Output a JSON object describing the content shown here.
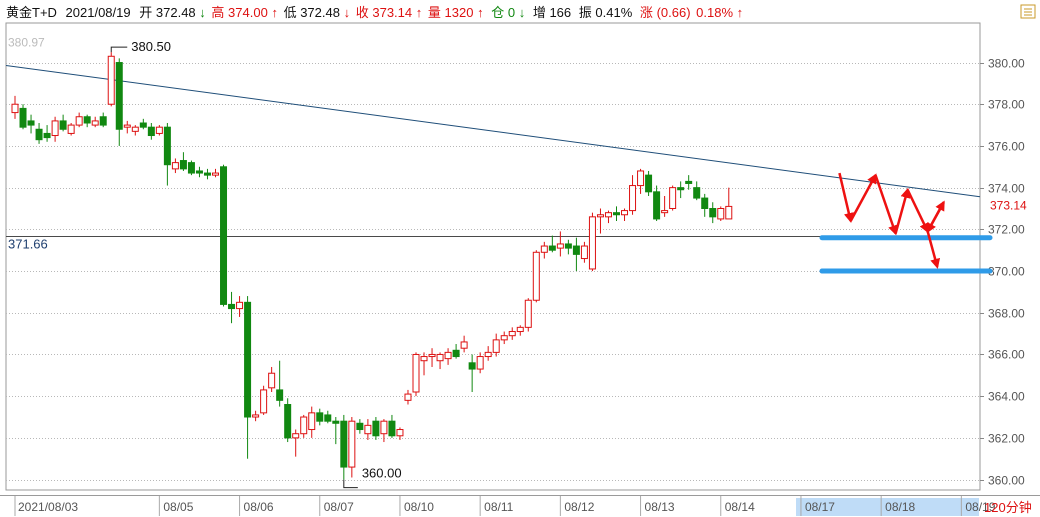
{
  "header": {
    "symbol": "黄金T+D",
    "date": "2021/08/19",
    "open_label": "开",
    "open": "372.48",
    "open_arrow": "↓",
    "high_label": "高",
    "high": "374.00",
    "high_arrow": "↑",
    "low_label": "低",
    "low": "372.48",
    "low_arrow": "↓",
    "close_label": "收",
    "close": "373.14",
    "close_arrow": "↑",
    "volume_label": "量",
    "volume": "1320",
    "volume_arrow": "↑",
    "position_label": "仓",
    "position": "0",
    "position_arrow": "↓",
    "increase_label": "增",
    "increase": "166",
    "amplitude_label": "振",
    "amplitude": "0.41%",
    "change_label": "涨",
    "change": "(0.66)",
    "change_pct": "0.18%",
    "change_arrow": "↑"
  },
  "colors": {
    "up": "#dd1111",
    "down": "#118811",
    "trendline": "#1f4e79",
    "support": "#2f9be8",
    "annotation": "#ee1111",
    "grid": "#b8b8b8",
    "ylabel": "#555555"
  },
  "chart_data": {
    "type": "candlestick",
    "title": "",
    "xlabel": "",
    "ylabel": "",
    "ylim": [
      359.5,
      381.8
    ],
    "yticks": [
      380.0,
      378.0,
      376.0,
      374.0,
      372.0,
      370.0,
      368.0,
      366.0,
      364.0,
      362.0,
      360.0
    ],
    "ytick_labels": [
      "380.00",
      "378.00",
      "376.00",
      "374.00",
      "372.00",
      "370.00",
      "368.00",
      "366.00",
      "364.00",
      "362.00",
      "360.00"
    ],
    "grid": true,
    "xticks": [
      {
        "label": "2021/08/03",
        "index": 0
      },
      {
        "label": "08/05",
        "index": 18
      },
      {
        "label": "08/06",
        "index": 28
      },
      {
        "label": "08/07",
        "index": 38
      },
      {
        "label": "08/10",
        "index": 48
      },
      {
        "label": "08/11",
        "index": 58
      },
      {
        "label": "08/12",
        "index": 68
      },
      {
        "label": "08/13",
        "index": 78
      },
      {
        "label": "08/14",
        "index": 88
      },
      {
        "label": "08/17",
        "index": 98
      },
      {
        "label": "08/18",
        "index": 108
      },
      {
        "label": "08/19",
        "index": 118
      }
    ],
    "candles": [
      {
        "o": 377.6,
        "h": 378.4,
        "l": 377.3,
        "c": 378.0
      },
      {
        "o": 377.8,
        "h": 378.0,
        "l": 376.8,
        "c": 376.9
      },
      {
        "o": 377.2,
        "h": 377.5,
        "l": 376.6,
        "c": 377.0
      },
      {
        "o": 376.8,
        "h": 377.1,
        "l": 376.1,
        "c": 376.3
      },
      {
        "o": 376.6,
        "h": 377.0,
        "l": 376.2,
        "c": 376.4
      },
      {
        "o": 376.5,
        "h": 377.4,
        "l": 376.2,
        "c": 377.2
      },
      {
        "o": 377.2,
        "h": 377.5,
        "l": 376.7,
        "c": 376.8
      },
      {
        "o": 376.6,
        "h": 377.1,
        "l": 376.5,
        "c": 377.0
      },
      {
        "o": 377.0,
        "h": 377.6,
        "l": 376.9,
        "c": 377.4
      },
      {
        "o": 377.4,
        "h": 377.5,
        "l": 376.9,
        "c": 377.1
      },
      {
        "o": 377.0,
        "h": 377.4,
        "l": 376.9,
        "c": 377.2
      },
      {
        "o": 377.4,
        "h": 377.6,
        "l": 376.9,
        "c": 377.0
      },
      {
        "o": 378.0,
        "h": 380.5,
        "l": 377.9,
        "c": 380.3
      },
      {
        "o": 380.0,
        "h": 380.2,
        "l": 376.0,
        "c": 376.8
      },
      {
        "o": 376.9,
        "h": 377.2,
        "l": 376.6,
        "c": 377.0
      },
      {
        "o": 376.7,
        "h": 377.0,
        "l": 376.5,
        "c": 376.9
      },
      {
        "o": 377.1,
        "h": 377.3,
        "l": 376.8,
        "c": 376.9
      },
      {
        "o": 376.9,
        "h": 377.1,
        "l": 376.3,
        "c": 376.5
      },
      {
        "o": 376.6,
        "h": 377.0,
        "l": 376.5,
        "c": 376.9
      },
      {
        "o": 376.9,
        "h": 377.1,
        "l": 374.1,
        "c": 375.1
      },
      {
        "o": 374.9,
        "h": 375.4,
        "l": 374.7,
        "c": 375.2
      },
      {
        "o": 375.3,
        "h": 375.7,
        "l": 374.8,
        "c": 374.9
      },
      {
        "o": 375.2,
        "h": 375.3,
        "l": 374.6,
        "c": 374.7
      },
      {
        "o": 374.8,
        "h": 375.0,
        "l": 374.5,
        "c": 374.7
      },
      {
        "o": 374.7,
        "h": 374.9,
        "l": 374.4,
        "c": 374.6
      },
      {
        "o": 374.6,
        "h": 374.9,
        "l": 374.5,
        "c": 374.7
      },
      {
        "o": 375.0,
        "h": 375.1,
        "l": 368.3,
        "c": 368.4
      },
      {
        "o": 368.4,
        "h": 369.0,
        "l": 367.5,
        "c": 368.2
      },
      {
        "o": 368.2,
        "h": 368.8,
        "l": 367.8,
        "c": 368.5
      },
      {
        "o": 368.5,
        "h": 368.8,
        "l": 361.0,
        "c": 363.0
      },
      {
        "o": 363.0,
        "h": 363.3,
        "l": 362.8,
        "c": 363.1
      },
      {
        "o": 363.2,
        "h": 364.5,
        "l": 363.1,
        "c": 364.3
      },
      {
        "o": 364.4,
        "h": 365.4,
        "l": 364.2,
        "c": 365.1
      },
      {
        "o": 364.3,
        "h": 365.7,
        "l": 363.5,
        "c": 363.8
      },
      {
        "o": 363.6,
        "h": 363.9,
        "l": 361.8,
        "c": 362.0
      },
      {
        "o": 362.0,
        "h": 362.4,
        "l": 361.1,
        "c": 362.2
      },
      {
        "o": 362.2,
        "h": 363.1,
        "l": 362.0,
        "c": 363.0
      },
      {
        "o": 362.4,
        "h": 363.5,
        "l": 362.0,
        "c": 363.2
      },
      {
        "o": 363.2,
        "h": 363.4,
        "l": 362.6,
        "c": 362.8
      },
      {
        "o": 363.1,
        "h": 363.3,
        "l": 362.7,
        "c": 362.8
      },
      {
        "o": 362.8,
        "h": 363.0,
        "l": 361.7,
        "c": 362.7
      },
      {
        "o": 362.8,
        "h": 363.1,
        "l": 360.0,
        "c": 360.6
      },
      {
        "o": 360.6,
        "h": 363.0,
        "l": 360.1,
        "c": 362.8
      },
      {
        "o": 362.7,
        "h": 362.9,
        "l": 362.2,
        "c": 362.4
      },
      {
        "o": 362.2,
        "h": 362.9,
        "l": 361.9,
        "c": 362.6
      },
      {
        "o": 362.8,
        "h": 363.0,
        "l": 361.9,
        "c": 362.1
      },
      {
        "o": 362.2,
        "h": 362.9,
        "l": 361.8,
        "c": 362.8
      },
      {
        "o": 362.8,
        "h": 363.1,
        "l": 362.0,
        "c": 362.1
      },
      {
        "o": 362.1,
        "h": 362.5,
        "l": 361.9,
        "c": 362.4
      },
      {
        "o": 363.8,
        "h": 364.3,
        "l": 363.6,
        "c": 364.1
      }
    ],
    "candles_part2": [
      {
        "o": 364.2,
        "h": 366.1,
        "l": 364.0,
        "c": 366.0
      },
      {
        "o": 365.7,
        "h": 366.1,
        "l": 365.0,
        "c": 365.9
      },
      {
        "o": 365.9,
        "h": 366.3,
        "l": 365.4,
        "c": 366.0
      },
      {
        "o": 365.7,
        "h": 366.1,
        "l": 365.3,
        "c": 366.0
      },
      {
        "o": 365.8,
        "h": 366.3,
        "l": 365.5,
        "c": 366.1
      },
      {
        "o": 366.2,
        "h": 366.5,
        "l": 365.8,
        "c": 365.9
      },
      {
        "o": 366.3,
        "h": 366.9,
        "l": 366.1,
        "c": 366.6
      },
      {
        "o": 365.6,
        "h": 366.0,
        "l": 364.2,
        "c": 365.3
      },
      {
        "o": 365.3,
        "h": 366.1,
        "l": 365.1,
        "c": 365.9
      },
      {
        "o": 365.9,
        "h": 366.4,
        "l": 365.7,
        "c": 366.1
      },
      {
        "o": 366.1,
        "h": 367.0,
        "l": 365.9,
        "c": 366.7
      },
      {
        "o": 366.7,
        "h": 367.1,
        "l": 366.5,
        "c": 366.9
      },
      {
        "o": 366.9,
        "h": 367.3,
        "l": 366.7,
        "c": 367.1
      },
      {
        "o": 367.1,
        "h": 367.4,
        "l": 366.9,
        "c": 367.3
      },
      {
        "o": 367.3,
        "h": 368.7,
        "l": 367.1,
        "c": 368.6
      },
      {
        "o": 368.6,
        "h": 371.0,
        "l": 368.5,
        "c": 370.9
      },
      {
        "o": 370.9,
        "h": 371.4,
        "l": 370.6,
        "c": 371.2
      },
      {
        "o": 371.2,
        "h": 371.7,
        "l": 370.9,
        "c": 371.0
      },
      {
        "o": 371.1,
        "h": 371.9,
        "l": 370.7,
        "c": 371.3
      },
      {
        "o": 371.3,
        "h": 371.5,
        "l": 370.8,
        "c": 371.1
      },
      {
        "o": 371.2,
        "h": 371.6,
        "l": 370.0,
        "c": 370.8
      },
      {
        "o": 370.6,
        "h": 371.4,
        "l": 370.4,
        "c": 371.2
      },
      {
        "o": 370.1,
        "h": 372.8,
        "l": 370.0,
        "c": 372.6
      },
      {
        "o": 372.6,
        "h": 373.0,
        "l": 371.8,
        "c": 372.7
      },
      {
        "o": 372.6,
        "h": 372.9,
        "l": 372.3,
        "c": 372.8
      },
      {
        "o": 372.8,
        "h": 373.1,
        "l": 372.4,
        "c": 372.7
      },
      {
        "o": 372.7,
        "h": 373.0,
        "l": 372.4,
        "c": 372.9
      },
      {
        "o": 372.9,
        "h": 374.6,
        "l": 372.7,
        "c": 374.1
      },
      {
        "o": 374.1,
        "h": 374.9,
        "l": 373.7,
        "c": 374.8
      },
      {
        "o": 374.6,
        "h": 374.8,
        "l": 373.6,
        "c": 373.8
      },
      {
        "o": 373.8,
        "h": 374.1,
        "l": 372.4,
        "c": 372.5
      },
      {
        "o": 372.8,
        "h": 373.6,
        "l": 372.6,
        "c": 372.9
      },
      {
        "o": 373.0,
        "h": 374.1,
        "l": 372.9,
        "c": 374.0
      },
      {
        "o": 374.0,
        "h": 374.3,
        "l": 373.5,
        "c": 373.9
      },
      {
        "o": 374.3,
        "h": 374.6,
        "l": 373.9,
        "c": 374.2
      },
      {
        "o": 374.0,
        "h": 374.3,
        "l": 373.4,
        "c": 373.5
      },
      {
        "o": 373.5,
        "h": 373.7,
        "l": 372.6,
        "c": 373.0
      },
      {
        "o": 373.0,
        "h": 373.3,
        "l": 372.3,
        "c": 372.6
      },
      {
        "o": 372.5,
        "h": 373.1,
        "l": 372.4,
        "c": 373.0
      },
      {
        "o": 372.5,
        "h": 374.0,
        "l": 372.5,
        "c": 373.1
      }
    ],
    "price_labels": [
      {
        "text": "380.97",
        "value": 380.97
      },
      {
        "text": "380.50",
        "value": 380.5,
        "index": 12
      },
      {
        "text": "360.00",
        "value": 360.0,
        "index": 41
      },
      {
        "text": "371.66",
        "value": 371.66
      },
      {
        "text": "373.14",
        "value": 373.14
      }
    ],
    "trendline": {
      "from": {
        "index": -1.5,
        "value": 379.88
      },
      "to": {
        "index": 111.5,
        "value": 374.02
      }
    },
    "horizontal_line": 371.66,
    "support_levels": [
      371.6,
      370.0
    ],
    "annotation_zigzag": [
      {
        "index": 102.8,
        "value": 374.7
      },
      {
        "index": 104.2,
        "value": 372.4
      },
      {
        "index": 107.3,
        "value": 374.6
      },
      {
        "index": 109.8,
        "value": 371.8
      },
      {
        "index": 111.3,
        "value": 373.9
      },
      {
        "index": 113.8,
        "value": 371.9
      },
      {
        "index": 115.8,
        "value": 373.3
      },
      {
        "index": 113.8,
        "value": 371.9
      },
      {
        "index": 115.0,
        "value": 370.2
      }
    ],
    "period_label": "120分钟"
  }
}
